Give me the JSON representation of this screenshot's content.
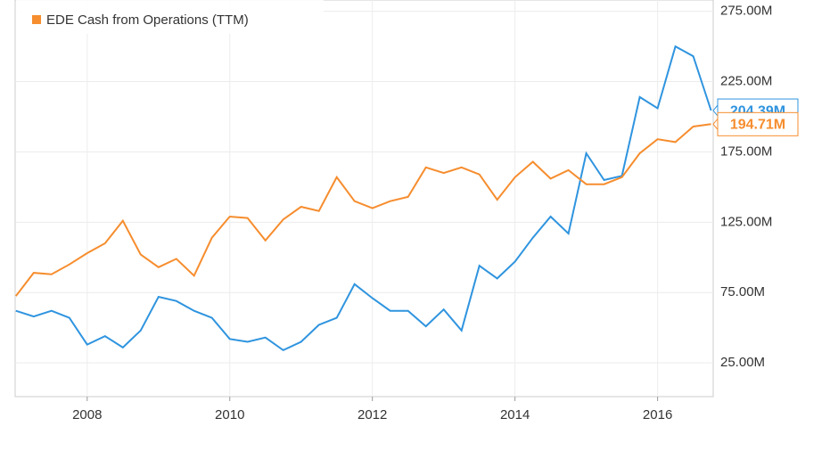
{
  "chart_data": {
    "type": "line",
    "x": [
      2007,
      2007.25,
      2007.5,
      2007.75,
      2008,
      2008.25,
      2008.5,
      2008.75,
      2009,
      2009.25,
      2009.5,
      2009.75,
      2010,
      2010.25,
      2010.5,
      2010.75,
      2011,
      2011.25,
      2011.5,
      2011.75,
      2012,
      2012.25,
      2012.5,
      2012.75,
      2013,
      2013.25,
      2013.5,
      2013.75,
      2014,
      2014.25,
      2014.5,
      2014.75,
      2015,
      2015.25,
      2015.5,
      2015.75,
      2016,
      2016.25,
      2016.5,
      2016.75
    ],
    "series": [
      {
        "color": "#2f94df",
        "values": [
          62,
          58,
          62,
          57,
          38,
          44,
          36,
          48,
          72,
          69,
          62,
          57,
          42,
          40,
          43,
          34,
          40,
          52,
          57,
          81,
          71,
          62,
          62,
          51,
          63,
          48,
          94,
          85,
          97,
          114,
          129,
          117,
          174,
          155,
          158,
          214,
          206,
          250,
          243,
          204.39
        ],
        "value_labels": [
          null,
          null,
          null,
          null,
          null,
          null,
          null,
          null,
          null,
          null,
          null,
          null,
          null,
          null,
          null,
          null,
          null,
          null,
          null,
          null,
          null,
          null,
          null,
          null,
          null,
          null,
          null,
          null,
          null,
          null,
          null,
          null,
          null,
          null,
          null,
          null,
          null,
          null,
          null,
          "204.39M"
        ]
      },
      {
        "name": "EDE Cash from Operations (TTM)",
        "color": "#f68d2e",
        "values": [
          72.5,
          89,
          88,
          95,
          103,
          110,
          126,
          102,
          93,
          99,
          87,
          114,
          129,
          128,
          112,
          127,
          136,
          133,
          157,
          140,
          135,
          140,
          143,
          164,
          160,
          164,
          159,
          141,
          157,
          168,
          156,
          162,
          152,
          152,
          157,
          174,
          184,
          182,
          193,
          194.71
        ],
        "value_labels": [
          null,
          null,
          null,
          null,
          null,
          null,
          null,
          null,
          null,
          null,
          null,
          null,
          null,
          null,
          null,
          null,
          null,
          null,
          null,
          null,
          null,
          null,
          null,
          null,
          null,
          null,
          null,
          null,
          null,
          null,
          null,
          null,
          null,
          null,
          null,
          null,
          null,
          null,
          null,
          "194.71M"
        ]
      }
    ],
    "xlim": [
      2006.99,
      2016.78
    ],
    "xticks": [
      2008,
      2010,
      2012,
      2014,
      2016
    ],
    "ylim": [
      1,
      283
    ],
    "yticks": [
      {
        "value": 25,
        "label": "25.00M"
      },
      {
        "value": 75,
        "label": "75.00M"
      },
      {
        "value": 125,
        "label": "125.00M"
      },
      {
        "value": 175,
        "label": "175.00M"
      },
      {
        "value": 225,
        "label": "225.00M"
      },
      {
        "value": 275,
        "label": "275.00M"
      }
    ],
    "grid": true
  }
}
